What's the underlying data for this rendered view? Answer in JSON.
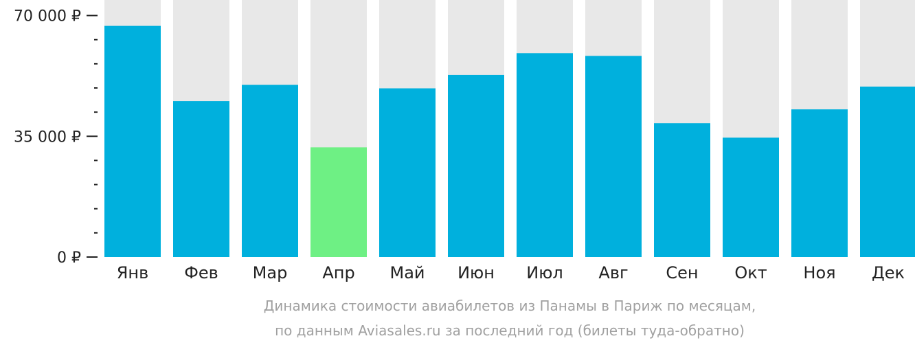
{
  "chart_data": {
    "type": "bar",
    "categories": [
      "Янв",
      "Фев",
      "Мар",
      "Апр",
      "Май",
      "Июн",
      "Июл",
      "Авг",
      "Сен",
      "Окт",
      "Ноя",
      "Дек"
    ],
    "values": [
      67000,
      45200,
      49900,
      31800,
      48900,
      52800,
      59100,
      58300,
      38800,
      34600,
      42800,
      49400
    ],
    "ylim": [
      0,
      74500
    ],
    "yticks": [
      {
        "value": 0,
        "label": "0 ₽"
      },
      {
        "value": 35000,
        "label": "35 000 ₽"
      },
      {
        "value": 70000,
        "label": "70 000 ₽"
      }
    ],
    "minor_tick_step": 7000,
    "highlight_index": 3,
    "colors": {
      "bar": "#00b0dd",
      "highlight": "#6ef084",
      "background": "#e8e8e8",
      "axis": "#222222"
    },
    "caption": [
      "Динамика стоимости авиабилетов из Панамы в Париж по месяцам,",
      "по данным Aviasales.ru за последний год (билеты туда-обратно)"
    ]
  }
}
